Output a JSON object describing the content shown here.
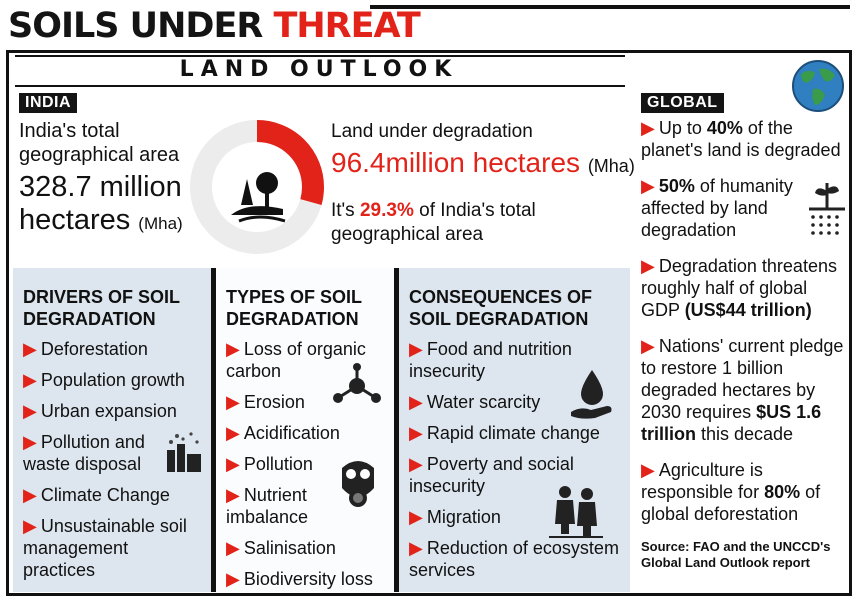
{
  "header": {
    "title_part1": "SOILS UNDER ",
    "title_part2": "THREAT",
    "subtitle": "LAND OUTLOOK"
  },
  "india": {
    "tag": "INDIA",
    "label": "India's total geographical area",
    "value": "328.7 million hectares",
    "unit": "(Mha)",
    "degradation_label": "Land under degradation",
    "degradation_value": "96.4million hectares",
    "degradation_unit": "(Mha)",
    "note_prefix": "It's ",
    "note_pct": "29.3%",
    "note_suffix": " of India's total geographical area",
    "degraded_fraction": 0.293,
    "accent_color": "#e2231a"
  },
  "drivers": {
    "heading": "DRIVERS OF SOIL DEGRADATION",
    "items": [
      "Deforestation",
      "Population growth",
      "Urban expansion",
      "Pollution and waste disposal",
      "Climate Change",
      "Unsustainable soil management practices"
    ]
  },
  "types": {
    "heading": "TYPES OF SOIL DEGRADATION",
    "items": [
      "Loss of organic carbon",
      "Erosion",
      "Acidification",
      "Pollution",
      "Nutrient imbalance",
      "Salinisation",
      "Biodiversity loss"
    ]
  },
  "consequences": {
    "heading": "CONSEQUENCES OF SOIL DEGRADATION",
    "items": [
      "Food and nutrition insecurity",
      "Water scarcity",
      "Rapid climate change",
      "Poverty and social insecurity",
      "Migration",
      "Reduction of ecosystem services"
    ]
  },
  "global": {
    "tag": "GLOBAL",
    "g1_a": "Up to ",
    "g1_b": "40%",
    "g1_c": " of the planet's land is degraded",
    "g2_a": "50%",
    "g2_b": " of humanity affected by land degradation",
    "g3_a": "Degradation threatens roughly half of global GDP ",
    "g3_b": "(US$44 trillion)",
    "g4_a": "Nations' current pledge to restore 1 billion degraded hectares by 2030 requires ",
    "g4_b": "$US 1.6 trillion",
    "g4_c": " this decade",
    "g5_a": "Agriculture is responsible for ",
    "g5_b": "80%",
    "g5_c": " of global deforestation",
    "source": "Source: FAO and the UNCCD's Global Land Outlook report"
  },
  "icons": {
    "bullet": "red-triangle-arrow",
    "globe": "globe-icon",
    "land": "land-degradation-icon",
    "molecule": "molecule-icon",
    "gas_mask": "gas-mask-icon",
    "water": "water-drop-hand-icon",
    "migration": "migrants-icon",
    "factory": "factory-pollution-icon",
    "plant": "plant-roots-icon"
  }
}
